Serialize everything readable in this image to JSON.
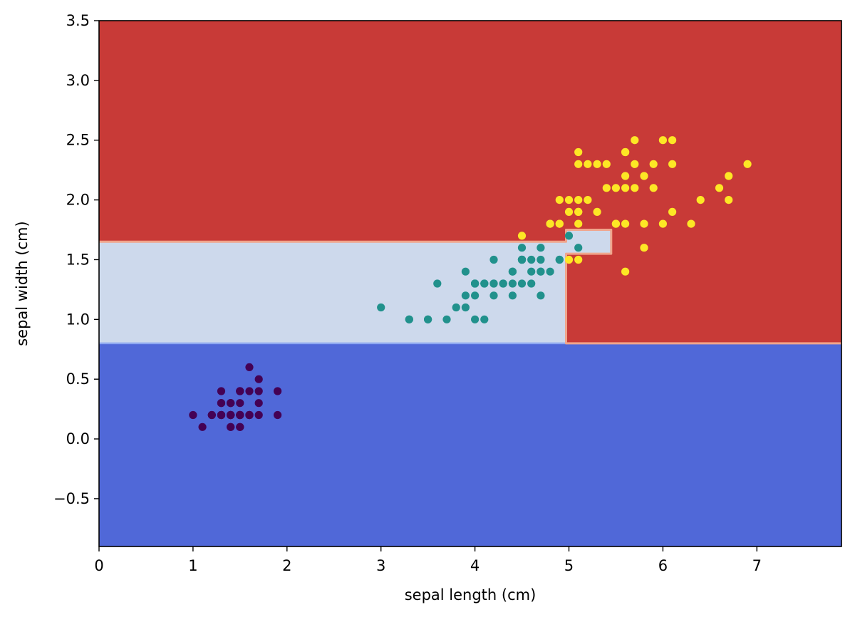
{
  "chart_data": {
    "type": "scatter",
    "xlabel": "sepal length (cm)",
    "ylabel": "sepal width (cm)",
    "xlim": [
      0,
      7.9
    ],
    "ylim": [
      -0.9,
      3.5
    ],
    "xticks": [
      0,
      1,
      2,
      3,
      4,
      5,
      6,
      7
    ],
    "xtick_labels": [
      "0",
      "1",
      "2",
      "3",
      "4",
      "5",
      "6",
      "7"
    ],
    "yticks": [
      -0.5,
      0.0,
      0.5,
      1.0,
      1.5,
      2.0,
      2.5,
      3.0,
      3.5
    ],
    "ytick_labels": [
      "−0.5",
      "0.0",
      "0.5",
      "1.0",
      "1.5",
      "2.0",
      "2.5",
      "3.0",
      "3.5"
    ],
    "grid": false,
    "legend": "none",
    "decision_regions": [
      {
        "class": 0,
        "color": "#5068d8",
        "polygon": [
          [
            0,
            -0.9
          ],
          [
            7.9,
            -0.9
          ],
          [
            7.9,
            0.8
          ],
          [
            0,
            0.8
          ]
        ]
      },
      {
        "class": 1,
        "color": "#cdd9ec",
        "polygon": [
          [
            0,
            0.8
          ],
          [
            4.97,
            0.8
          ],
          [
            4.97,
            1.65
          ],
          [
            0,
            1.65
          ]
        ]
      },
      {
        "class": 1,
        "color": "#cdd9ec",
        "polygon": [
          [
            4.97,
            1.55
          ],
          [
            5.45,
            1.55
          ],
          [
            5.45,
            1.75
          ],
          [
            4.97,
            1.75
          ]
        ]
      },
      {
        "class": 2,
        "color": "#c83a37",
        "polygon": [
          [
            0,
            1.65
          ],
          [
            4.97,
            1.65
          ],
          [
            4.97,
            1.75
          ],
          [
            5.45,
            1.75
          ],
          [
            5.45,
            1.55
          ],
          [
            4.97,
            1.55
          ],
          [
            4.97,
            0.8
          ],
          [
            7.9,
            0.8
          ],
          [
            7.9,
            3.5
          ],
          [
            0,
            3.5
          ]
        ]
      }
    ],
    "boundary_colors": {
      "class0_class1": "#8fa8f0",
      "class1_class2": "#f0a58c"
    },
    "series": [
      {
        "class": 0,
        "color": "#440154",
        "x": [
          1.4,
          1.4,
          1.3,
          1.5,
          1.4,
          1.7,
          1.4,
          1.5,
          1.4,
          1.5,
          1.5,
          1.6,
          1.4,
          1.1,
          1.2,
          1.5,
          1.3,
          1.4,
          1.7,
          1.5,
          1.7,
          1.5,
          1.0,
          1.7,
          1.9,
          1.6,
          1.6,
          1.5,
          1.4,
          1.6,
          1.6,
          1.5,
          1.5,
          1.4,
          1.5,
          1.2,
          1.3,
          1.4,
          1.3,
          1.5,
          1.3,
          1.3,
          1.3,
          1.6,
          1.9,
          1.4,
          1.6,
          1.4,
          1.5,
          1.4
        ],
        "y": [
          0.2,
          0.2,
          0.2,
          0.2,
          0.2,
          0.4,
          0.3,
          0.2,
          0.2,
          0.1,
          0.2,
          0.2,
          0.1,
          0.1,
          0.2,
          0.4,
          0.4,
          0.3,
          0.3,
          0.3,
          0.2,
          0.4,
          0.2,
          0.5,
          0.2,
          0.2,
          0.4,
          0.2,
          0.2,
          0.2,
          0.2,
          0.4,
          0.1,
          0.2,
          0.2,
          0.2,
          0.2,
          0.1,
          0.2,
          0.2,
          0.3,
          0.3,
          0.2,
          0.6,
          0.4,
          0.3,
          0.2,
          0.2,
          0.2,
          0.2
        ]
      },
      {
        "class": 1,
        "color": "#21918c",
        "x": [
          4.7,
          4.5,
          4.9,
          4.0,
          4.6,
          4.5,
          4.7,
          3.3,
          4.6,
          3.9,
          3.5,
          4.2,
          4.0,
          4.7,
          3.6,
          4.4,
          4.5,
          4.1,
          4.5,
          3.9,
          4.8,
          4.0,
          4.9,
          4.7,
          4.3,
          4.4,
          4.8,
          5.0,
          4.5,
          3.5,
          3.8,
          3.7,
          3.9,
          5.1,
          4.5,
          4.5,
          4.7,
          4.4,
          4.1,
          4.0,
          4.4,
          4.6,
          4.0,
          3.3,
          4.2,
          4.2,
          4.2,
          4.3,
          3.0,
          4.1
        ],
        "y": [
          1.4,
          1.5,
          1.5,
          1.3,
          1.5,
          1.3,
          1.6,
          1.0,
          1.3,
          1.4,
          1.0,
          1.5,
          1.0,
          1.4,
          1.3,
          1.4,
          1.5,
          1.0,
          1.5,
          1.1,
          1.8,
          1.3,
          1.5,
          1.2,
          1.3,
          1.4,
          1.4,
          1.7,
          1.5,
          1.0,
          1.1,
          1.0,
          1.2,
          1.6,
          1.5,
          1.6,
          1.5,
          1.3,
          1.3,
          1.3,
          1.2,
          1.4,
          1.2,
          1.0,
          1.3,
          1.2,
          1.3,
          1.3,
          1.1,
          1.3
        ]
      },
      {
        "class": 2,
        "color": "#fde725",
        "x": [
          6.0,
          5.1,
          5.9,
          5.6,
          5.8,
          6.6,
          4.5,
          6.3,
          5.8,
          6.1,
          5.1,
          5.3,
          5.5,
          5.0,
          5.1,
          5.3,
          5.5,
          6.7,
          6.9,
          5.0,
          5.7,
          4.9,
          6.7,
          4.9,
          5.7,
          6.0,
          4.8,
          4.9,
          5.6,
          5.8,
          6.1,
          6.4,
          5.6,
          5.1,
          5.6,
          6.1,
          5.6,
          5.5,
          4.8,
          5.4,
          5.6,
          5.1,
          5.1,
          5.9,
          5.7,
          5.2,
          5.0,
          5.2,
          5.4,
          5.1
        ],
        "y": [
          2.5,
          1.9,
          2.1,
          1.8,
          2.2,
          2.1,
          1.7,
          1.8,
          1.8,
          2.5,
          2.0,
          1.9,
          2.1,
          2.0,
          2.4,
          2.3,
          1.8,
          2.2,
          2.3,
          1.5,
          2.3,
          2.0,
          2.0,
          1.8,
          2.1,
          1.8,
          1.8,
          1.8,
          2.1,
          1.6,
          1.9,
          2.0,
          2.2,
          1.5,
          1.4,
          2.3,
          2.4,
          1.8,
          1.8,
          2.1,
          2.4,
          2.3,
          1.9,
          2.3,
          2.5,
          2.3,
          1.9,
          2.0,
          2.3,
          1.8
        ]
      }
    ]
  }
}
